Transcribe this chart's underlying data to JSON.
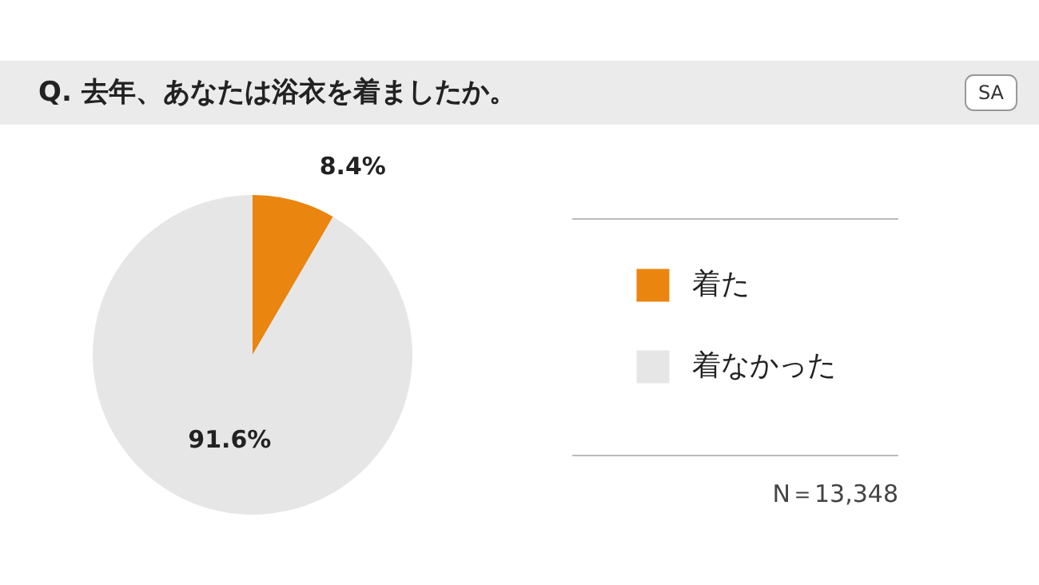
{
  "chart_data": {
    "type": "pie",
    "title": "Q. 去年、あなたは浴衣を着ましたか。",
    "categories": [
      "着た",
      "着なかった"
    ],
    "values": [
      8.4,
      91.6
    ],
    "colors": [
      "#ea8510",
      "#e6e6e6"
    ],
    "value_labels": [
      "8.4%",
      "91.6%"
    ],
    "legend": "right",
    "annotations": [
      "SA",
      "N＝13,348"
    ]
  }
}
